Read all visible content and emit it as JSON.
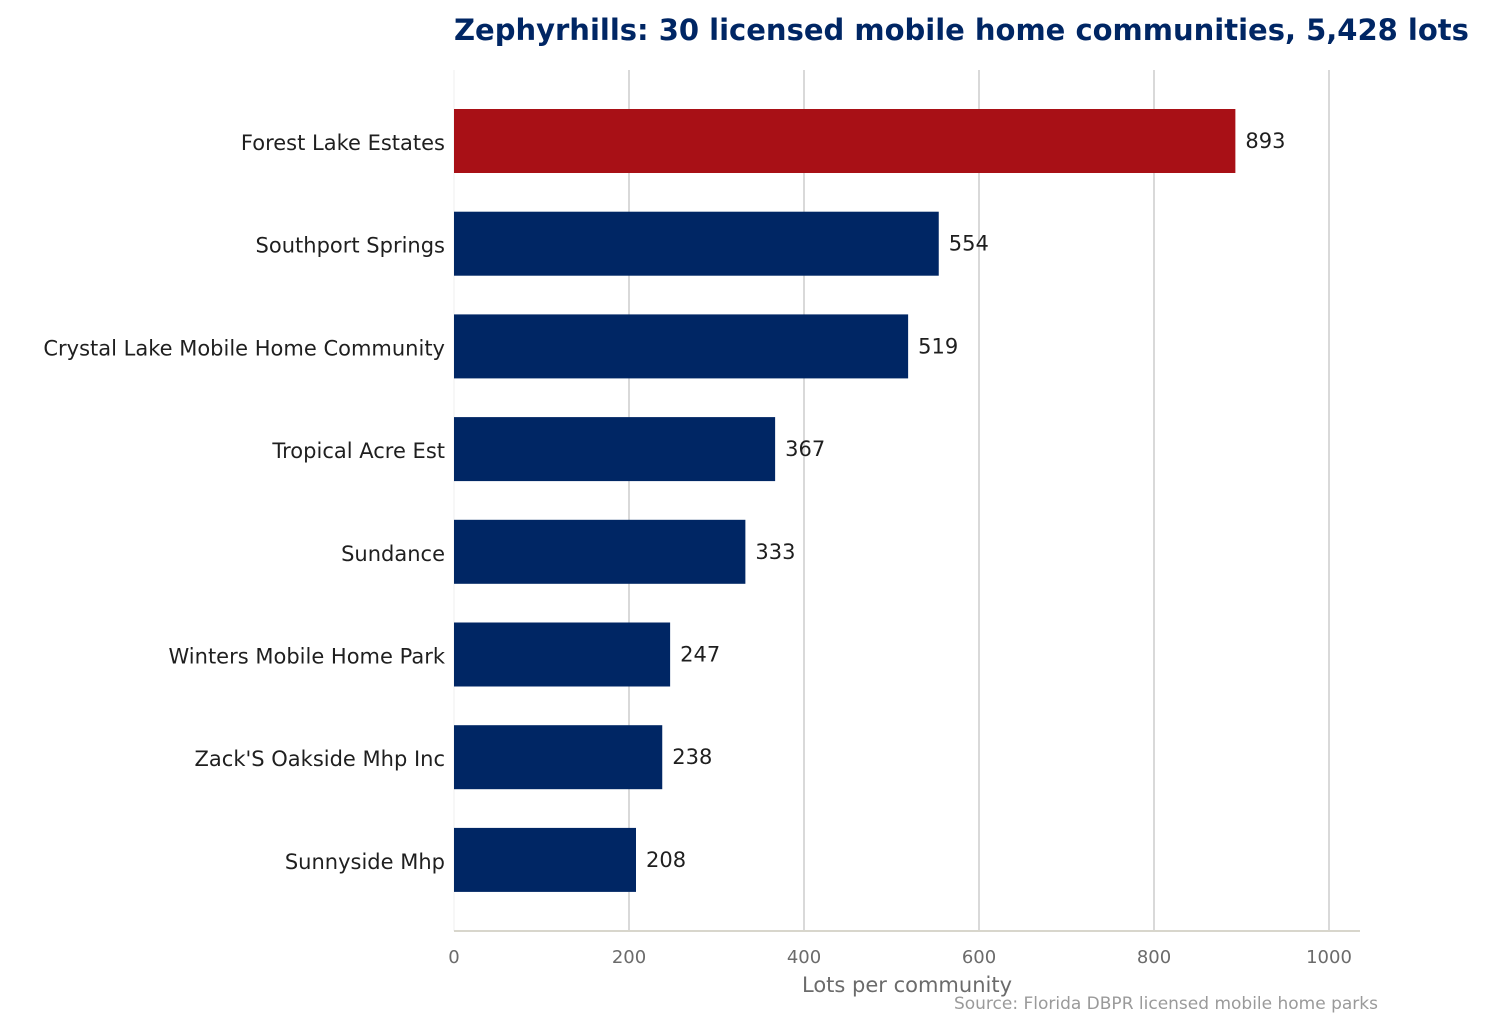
{
  "chart_data": {
    "type": "bar",
    "orientation": "horizontal",
    "title": "Zephyrhills: 30 licensed mobile home communities, 5,428 lots",
    "xlabel": "Lots per community",
    "ylabel": "",
    "source": "Source: Florida DBPR licensed mobile home parks",
    "xlim": [
      0,
      1035
    ],
    "x_ticks": [
      0,
      200,
      400,
      600,
      800,
      1000
    ],
    "grid": "vertical",
    "categories": [
      "Forest Lake Estates",
      "Southport Springs",
      "Crystal Lake Mobile Home Community",
      "Tropical Acre Est",
      "Sundance",
      "Winters Mobile Home Park",
      "Zack'S Oakside Mhp Inc",
      "Sunnyside Mhp"
    ],
    "values": [
      893,
      554,
      519,
      367,
      333,
      247,
      238,
      208
    ],
    "highlight_index": 0,
    "colors": {
      "highlight": "#a81016",
      "bar": "#002664",
      "title": "#002664"
    }
  }
}
